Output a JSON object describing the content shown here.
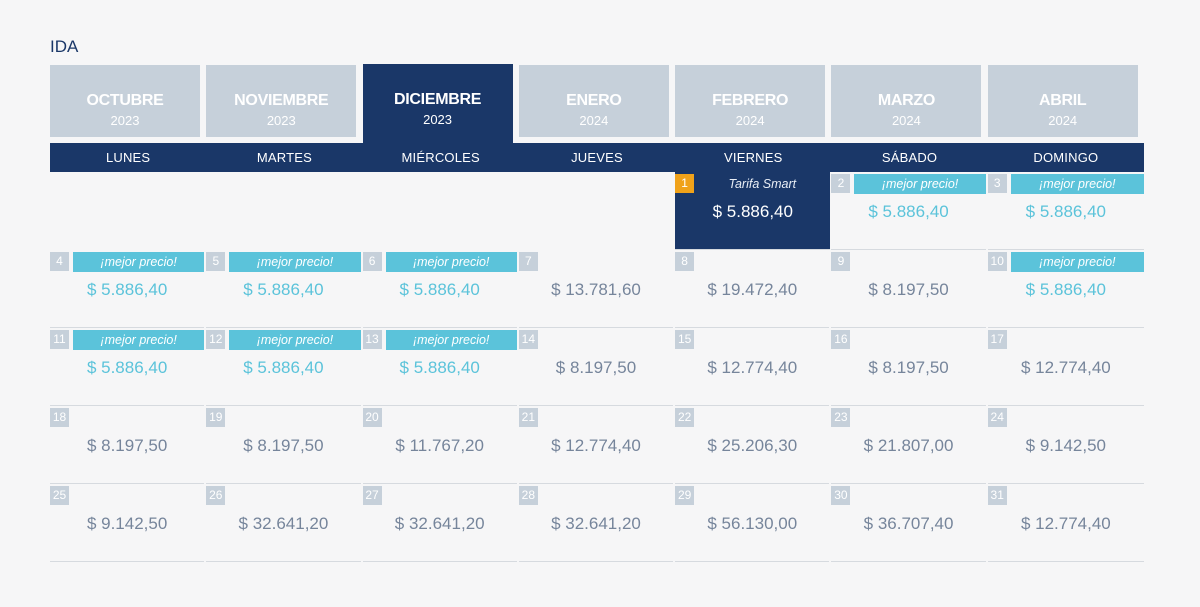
{
  "section_title": "IDA",
  "months": [
    {
      "name": "OCTUBRE",
      "year": "2023",
      "active": false
    },
    {
      "name": "NOVIEMBRE",
      "year": "2023",
      "active": false
    },
    {
      "name": "DICIEMBRE",
      "year": "2023",
      "active": true
    },
    {
      "name": "ENERO",
      "year": "2024",
      "active": false
    },
    {
      "name": "FEBRERO",
      "year": "2024",
      "active": false
    },
    {
      "name": "MARZO",
      "year": "2024",
      "active": false
    },
    {
      "name": "ABRIL",
      "year": "2024",
      "active": false
    }
  ],
  "weekdays": [
    "LUNES",
    "MARTES",
    "MIÉRCOLES",
    "JUEVES",
    "VIERNES",
    "SÁBADO",
    "DOMINGO"
  ],
  "first_weekday_offset": 4,
  "colors": {
    "navy": "#1a3768",
    "best_price": "#5bc3da",
    "smart_day": "#f0a21a",
    "inactive": "#c6d0da"
  },
  "days": [
    {
      "day": "1",
      "price": "$ 5.886,40",
      "label": "Tarifa Smart",
      "kind": "smart"
    },
    {
      "day": "2",
      "price": "$ 5.886,40",
      "label": "¡mejor precio!",
      "kind": "best"
    },
    {
      "day": "3",
      "price": "$ 5.886,40",
      "label": "¡mejor precio!",
      "kind": "best"
    },
    {
      "day": "4",
      "price": "$ 5.886,40",
      "label": "¡mejor precio!",
      "kind": "best"
    },
    {
      "day": "5",
      "price": "$ 5.886,40",
      "label": "¡mejor precio!",
      "kind": "best"
    },
    {
      "day": "6",
      "price": "$ 5.886,40",
      "label": "¡mejor precio!",
      "kind": "best"
    },
    {
      "day": "7",
      "price": "$ 13.781,60",
      "label": "",
      "kind": "normal"
    },
    {
      "day": "8",
      "price": "$ 19.472,40",
      "label": "",
      "kind": "normal"
    },
    {
      "day": "9",
      "price": "$ 8.197,50",
      "label": "",
      "kind": "normal"
    },
    {
      "day": "10",
      "price": "$ 5.886,40",
      "label": "¡mejor precio!",
      "kind": "best"
    },
    {
      "day": "11",
      "price": "$ 5.886,40",
      "label": "¡mejor precio!",
      "kind": "best"
    },
    {
      "day": "12",
      "price": "$ 5.886,40",
      "label": "¡mejor precio!",
      "kind": "best"
    },
    {
      "day": "13",
      "price": "$ 5.886,40",
      "label": "¡mejor precio!",
      "kind": "best"
    },
    {
      "day": "14",
      "price": "$ 8.197,50",
      "label": "",
      "kind": "normal"
    },
    {
      "day": "15",
      "price": "$ 12.774,40",
      "label": "",
      "kind": "normal"
    },
    {
      "day": "16",
      "price": "$ 8.197,50",
      "label": "",
      "kind": "normal"
    },
    {
      "day": "17",
      "price": "$ 12.774,40",
      "label": "",
      "kind": "normal"
    },
    {
      "day": "18",
      "price": "$ 8.197,50",
      "label": "",
      "kind": "normal"
    },
    {
      "day": "19",
      "price": "$ 8.197,50",
      "label": "",
      "kind": "normal"
    },
    {
      "day": "20",
      "price": "$ 11.767,20",
      "label": "",
      "kind": "normal"
    },
    {
      "day": "21",
      "price": "$ 12.774,40",
      "label": "",
      "kind": "normal"
    },
    {
      "day": "22",
      "price": "$ 25.206,30",
      "label": "",
      "kind": "normal"
    },
    {
      "day": "23",
      "price": "$ 21.807,00",
      "label": "",
      "kind": "normal"
    },
    {
      "day": "24",
      "price": "$ 9.142,50",
      "label": "",
      "kind": "normal"
    },
    {
      "day": "25",
      "price": "$ 9.142,50",
      "label": "",
      "kind": "normal"
    },
    {
      "day": "26",
      "price": "$ 32.641,20",
      "label": "",
      "kind": "normal"
    },
    {
      "day": "27",
      "price": "$ 32.641,20",
      "label": "",
      "kind": "normal"
    },
    {
      "day": "28",
      "price": "$ 32.641,20",
      "label": "",
      "kind": "normal"
    },
    {
      "day": "29",
      "price": "$ 56.130,00",
      "label": "",
      "kind": "normal"
    },
    {
      "day": "30",
      "price": "$ 36.707,40",
      "label": "",
      "kind": "normal"
    },
    {
      "day": "31",
      "price": "$ 12.774,40",
      "label": "",
      "kind": "normal"
    }
  ]
}
